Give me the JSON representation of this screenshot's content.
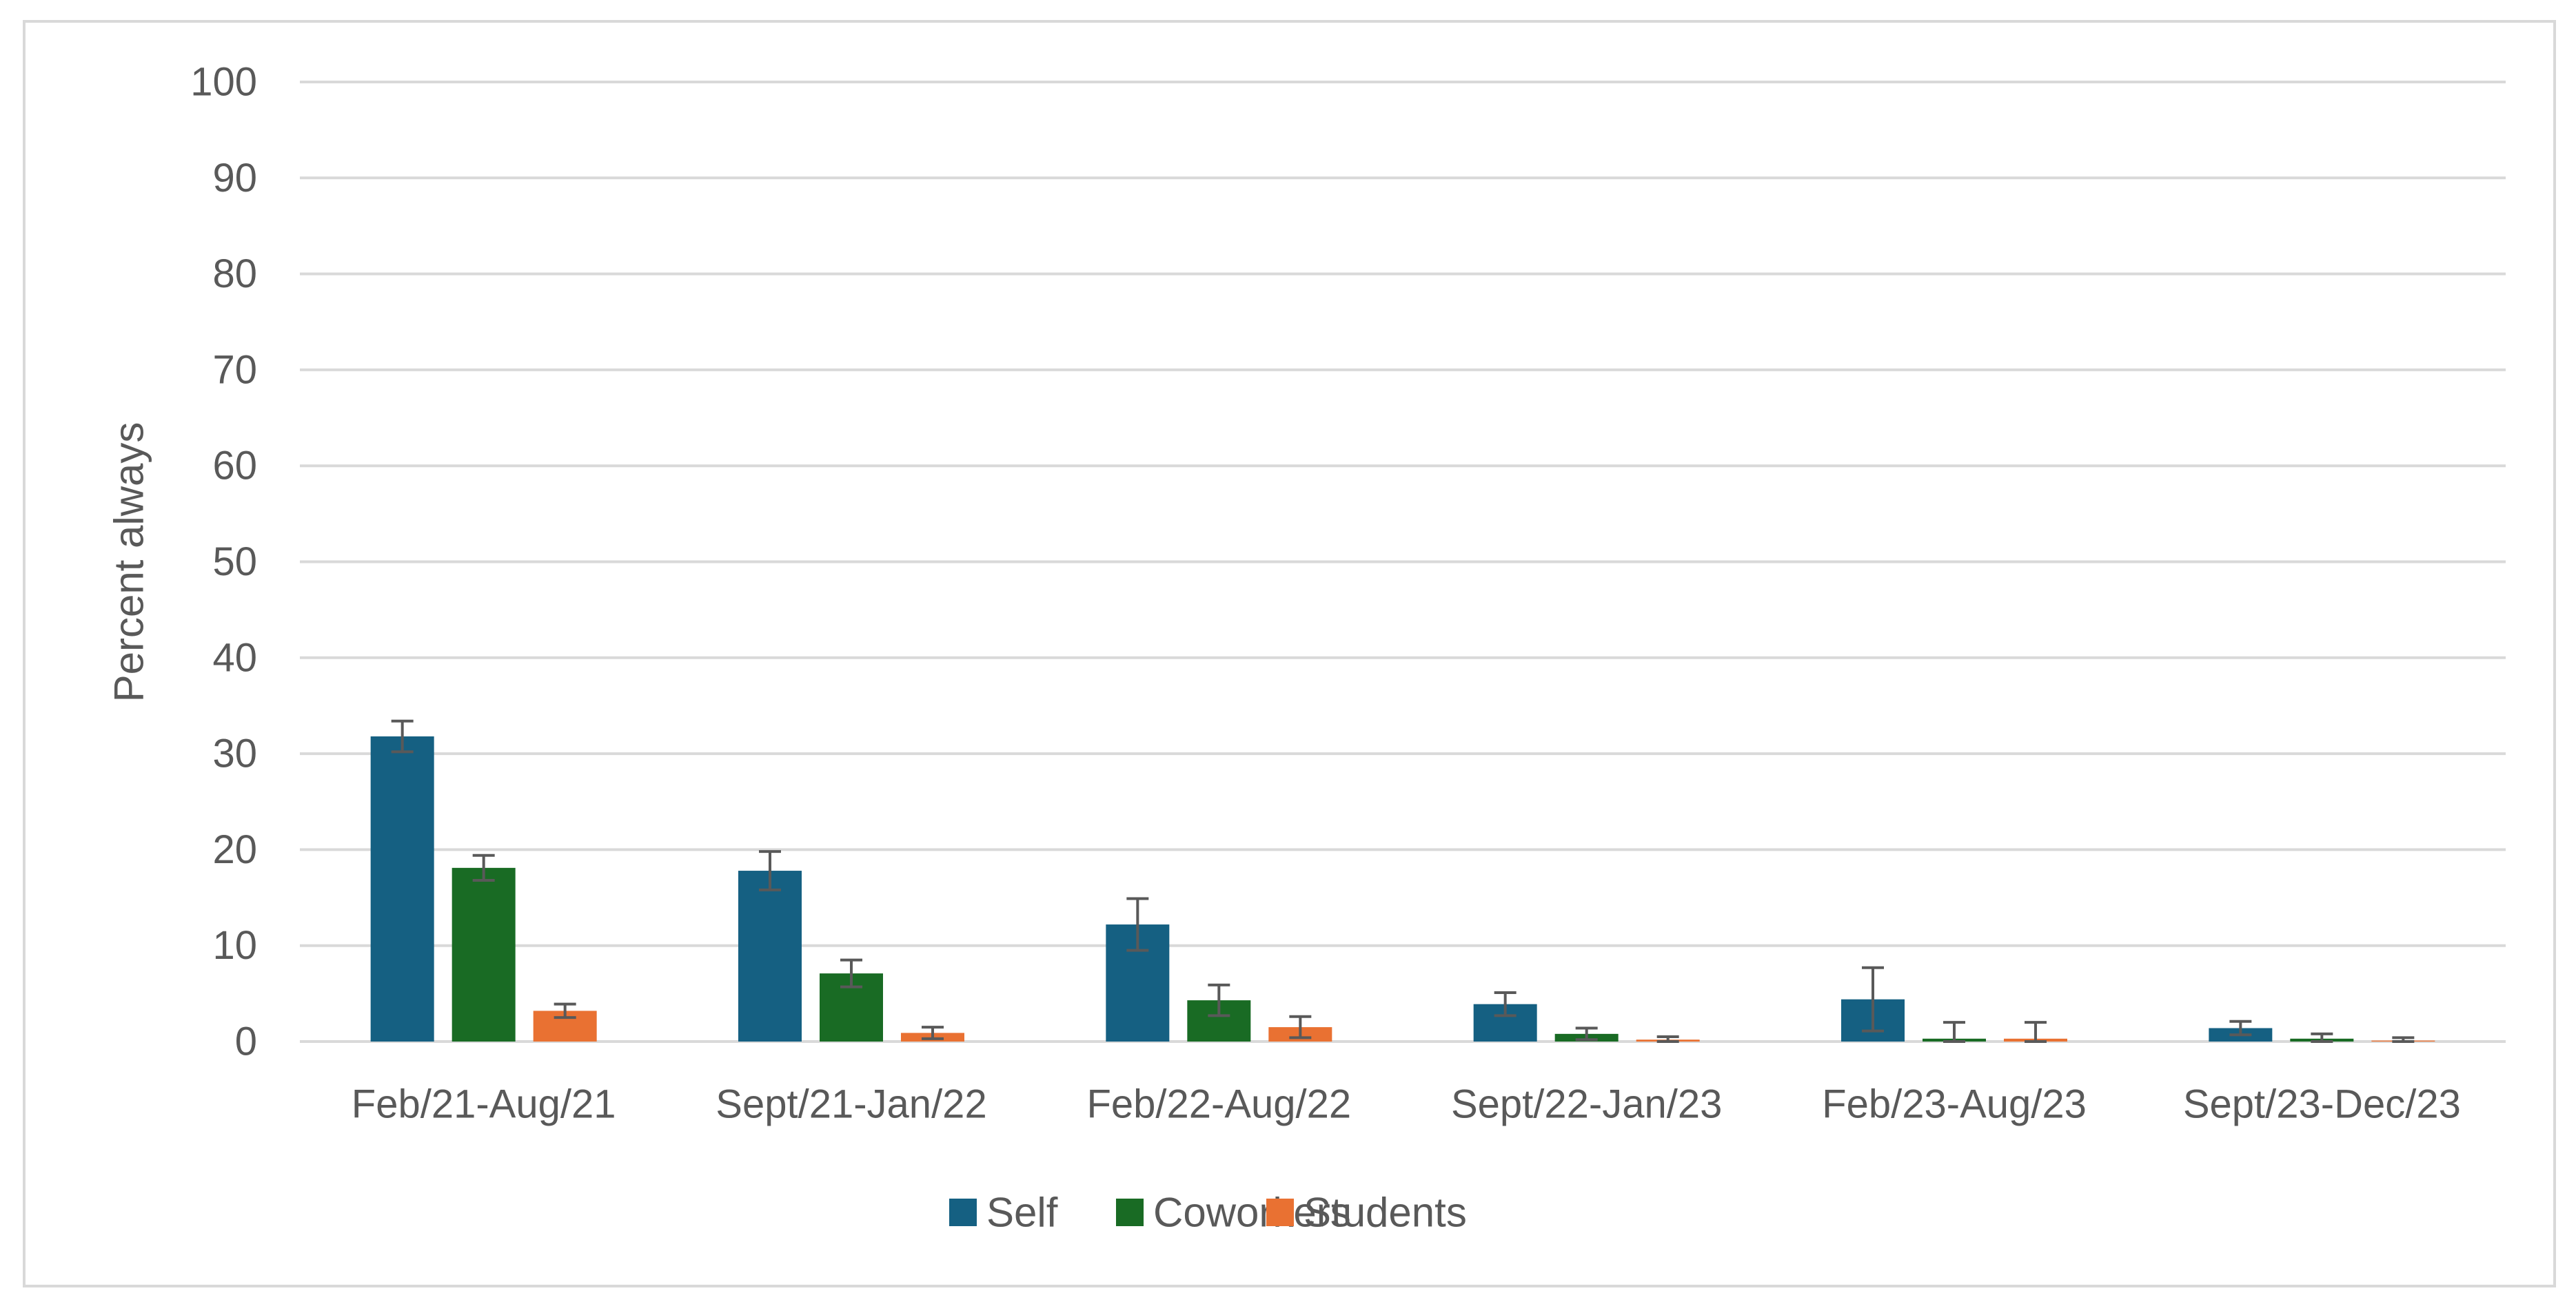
{
  "chart_data": {
    "type": "bar",
    "title": "",
    "xlabel": "",
    "ylabel": "Percent always",
    "ylim": [
      0,
      100
    ],
    "yticks": [
      0,
      10,
      20,
      30,
      40,
      50,
      60,
      70,
      80,
      90,
      100
    ],
    "grid": true,
    "legend_position": "bottom",
    "categories": [
      "Feb/21-Aug/21",
      "Sept/21-Jan/22",
      "Feb/22-Aug/22",
      "Sept/22-Jan/23",
      "Feb/23-Aug/23",
      "Sept/23-Dec/23"
    ],
    "series": [
      {
        "name": "Self",
        "color": "#156082",
        "values": [
          31.8,
          17.8,
          12.2,
          3.9,
          4.4,
          1.4
        ],
        "error": [
          1.6,
          2.0,
          2.7,
          1.2,
          3.3,
          0.7
        ]
      },
      {
        "name": "Coworkers",
        "color": "#196b24",
        "values": [
          18.1,
          7.1,
          4.3,
          0.8,
          0.3,
          0.3
        ],
        "error": [
          1.3,
          1.4,
          1.6,
          0.6,
          1.7,
          0.5
        ]
      },
      {
        "name": "Students",
        "color": "#e97132",
        "values": [
          3.2,
          0.9,
          1.5,
          0.2,
          0.3,
          0.1
        ],
        "error": [
          0.7,
          0.6,
          1.1,
          0.3,
          1.7,
          0.3
        ]
      }
    ]
  }
}
